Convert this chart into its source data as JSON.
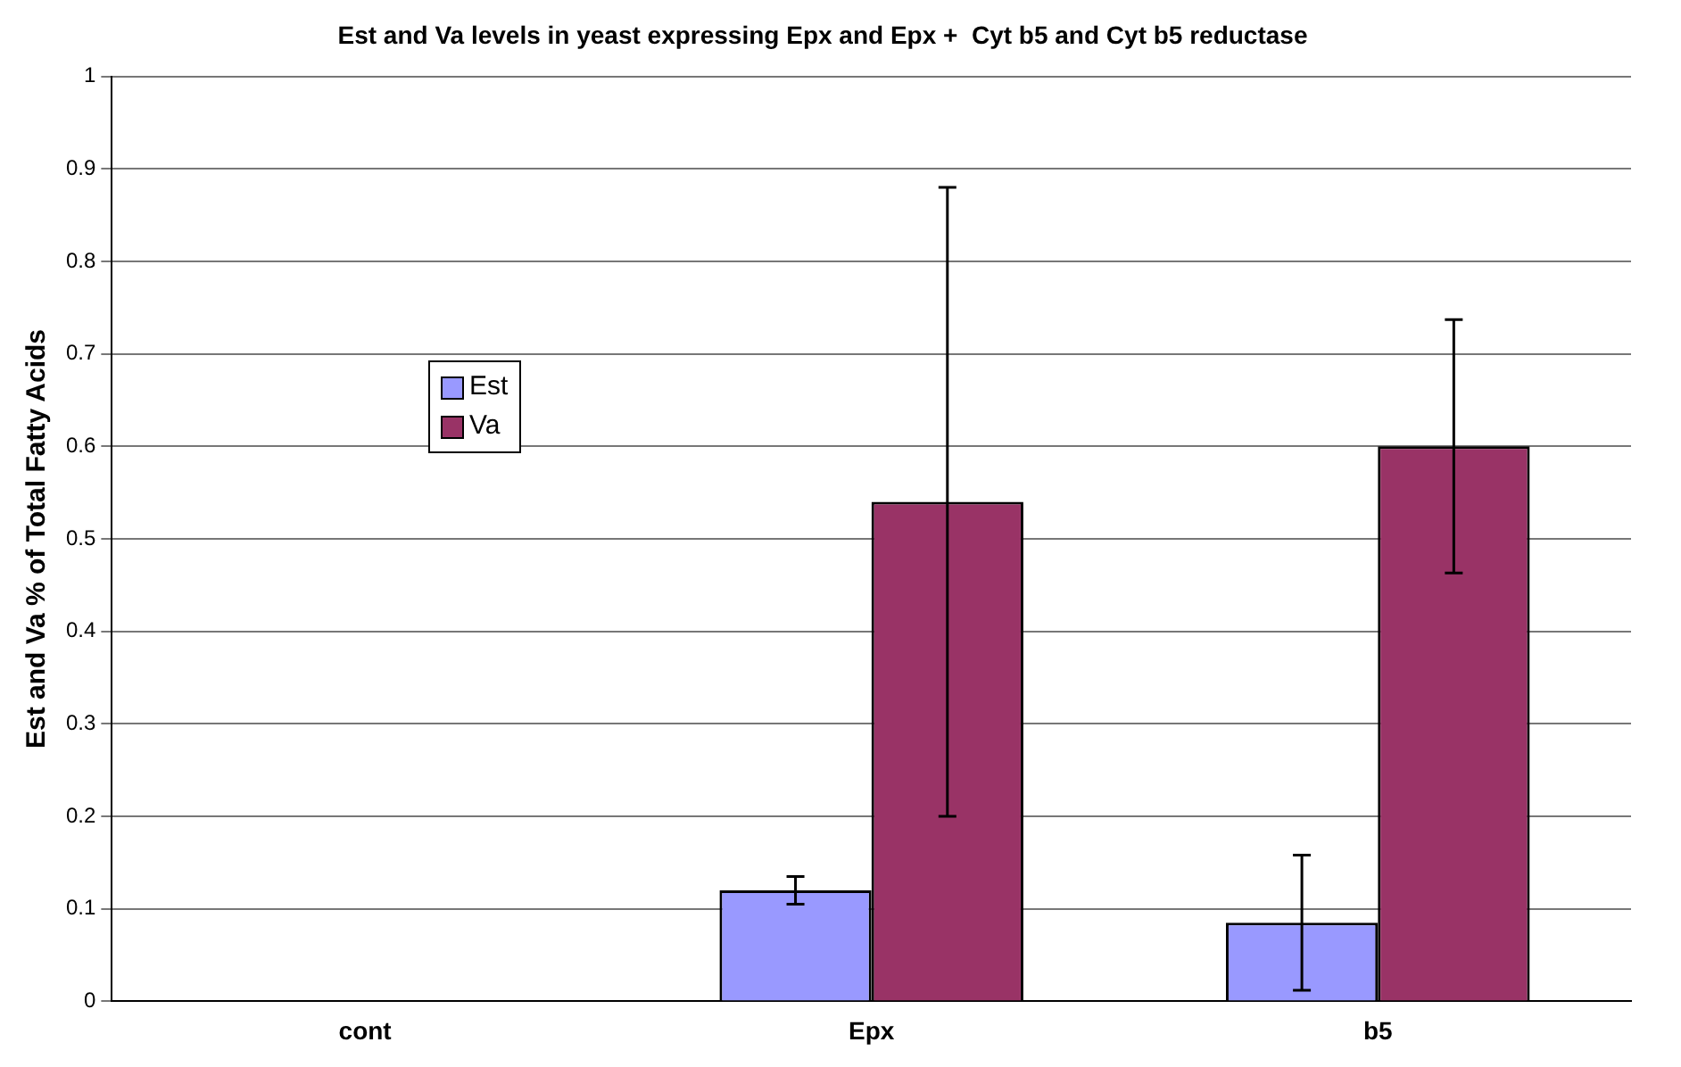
{
  "chart_data": {
    "type": "bar",
    "title": "Est and Va levels in yeast expressing Epx and Epx +  Cyt b5 and Cyt b5 reductase",
    "ylabel": "Est and Va % of Total Fatty Acids",
    "categories": [
      "cont",
      "Epx",
      "b5"
    ],
    "series": [
      {
        "name": "Est",
        "color": "#9999ff",
        "values": [
          0,
          0.12,
          0.085
        ],
        "errors": [
          null,
          0.015,
          0.073
        ]
      },
      {
        "name": "Va",
        "color": "#993366",
        "values": [
          0,
          0.54,
          0.6
        ],
        "errors": [
          null,
          0.34,
          0.137
        ]
      }
    ],
    "ylim": [
      0,
      1
    ],
    "yticks": [
      0,
      0.1,
      0.2,
      0.3,
      0.4,
      0.5,
      0.6,
      0.7,
      0.8,
      0.9,
      1
    ],
    "grid": "y",
    "legend": "left"
  }
}
